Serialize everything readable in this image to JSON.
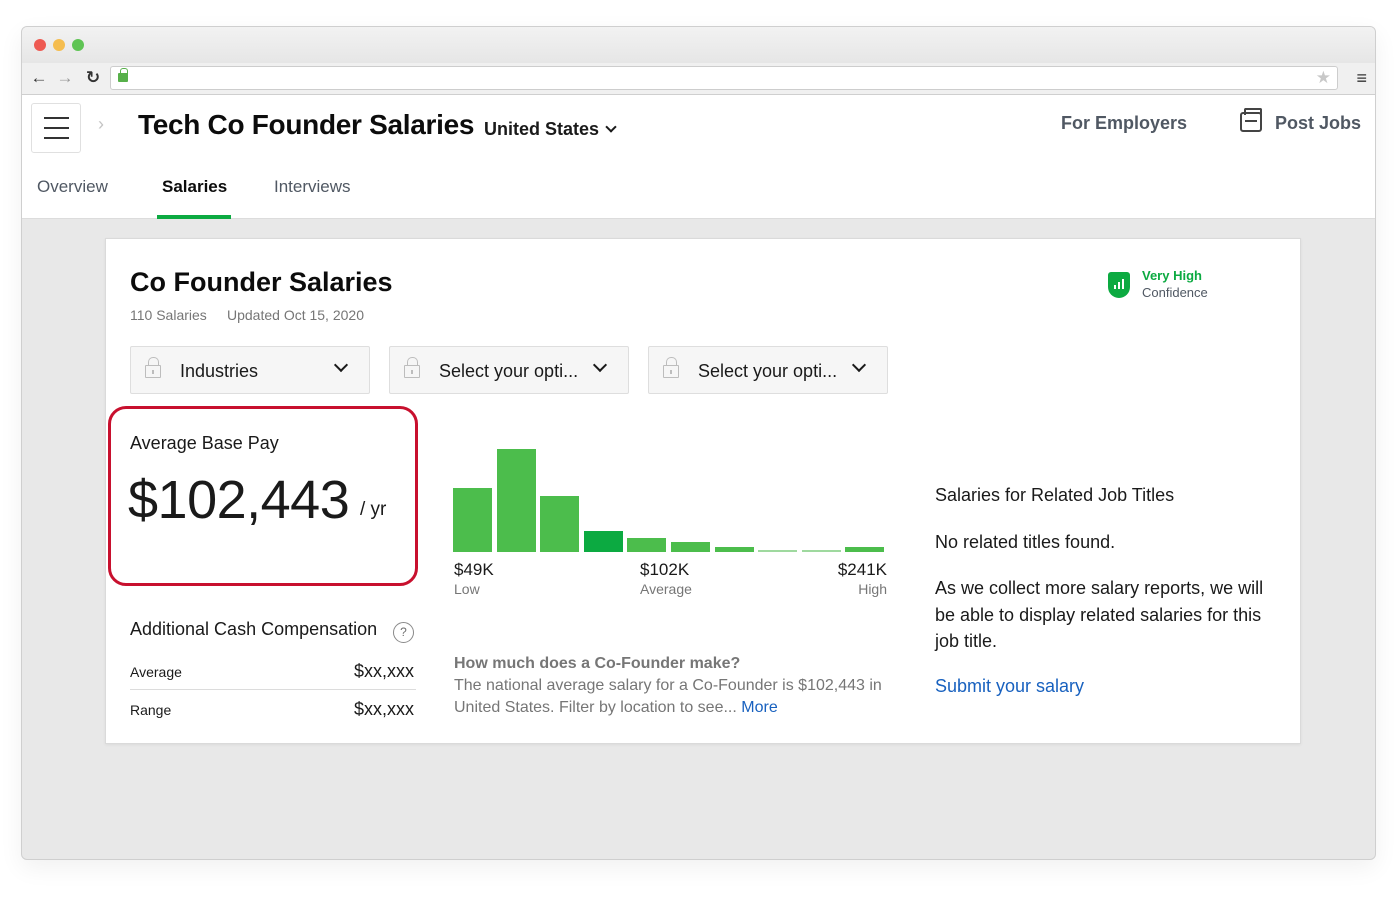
{
  "browser": {
    "url": ""
  },
  "header": {
    "page_title": "Tech Co Founder Salaries",
    "country": "United States",
    "for_employers": "For Employers",
    "post_jobs": "Post Jobs"
  },
  "tabs": [
    {
      "label": "Overview",
      "active": false
    },
    {
      "label": "Salaries",
      "active": true
    },
    {
      "label": "Interviews",
      "active": false
    }
  ],
  "card": {
    "title": "Co Founder Salaries",
    "salary_count": "110 Salaries",
    "updated": "Updated Oct 15, 2020",
    "confidence_level": "Very High",
    "confidence_label": "Confidence"
  },
  "filters": [
    {
      "label": "Industries"
    },
    {
      "label": "Select your opti..."
    },
    {
      "label": "Select your opti..."
    }
  ],
  "average_base_pay": {
    "label": "Average Base Pay",
    "value": "$102,443",
    "unit": "/ yr"
  },
  "additional_cash": {
    "title": "Additional Cash Compensation",
    "rows": [
      {
        "label": "Average",
        "value": "$xx,xxx"
      },
      {
        "label": "Range",
        "value": "$xx,xxx"
      }
    ]
  },
  "chart_data": {
    "type": "bar",
    "values": [
      0.62,
      1.0,
      0.54,
      0.2,
      0.14,
      0.1,
      0.05,
      0.015,
      0.015,
      0.05
    ],
    "highlight_index": 3,
    "colors": {
      "bar": "#4cbd4c",
      "highlight": "#0caa41",
      "line": "#9fd99f"
    },
    "axis": [
      {
        "value": "$49K",
        "caption": "Low"
      },
      {
        "value": "$102K",
        "caption": "Average"
      },
      {
        "value": "$241K",
        "caption": "High"
      }
    ]
  },
  "question": {
    "title": "How much does a Co-Founder make?",
    "body": "The national average salary for a Co-Founder is $102,443 in United States. Filter by location to see...",
    "more": "More"
  },
  "related": {
    "title": "Salaries for Related Job Titles",
    "none": "No related titles found.",
    "description": "As we collect more salary reports, we will be able to display related salaries for this job title.",
    "submit": "Submit your salary"
  },
  "colors": {
    "accent_green": "#0caa41",
    "link_blue": "#1861bf",
    "highlight_red": "#c8102e"
  }
}
